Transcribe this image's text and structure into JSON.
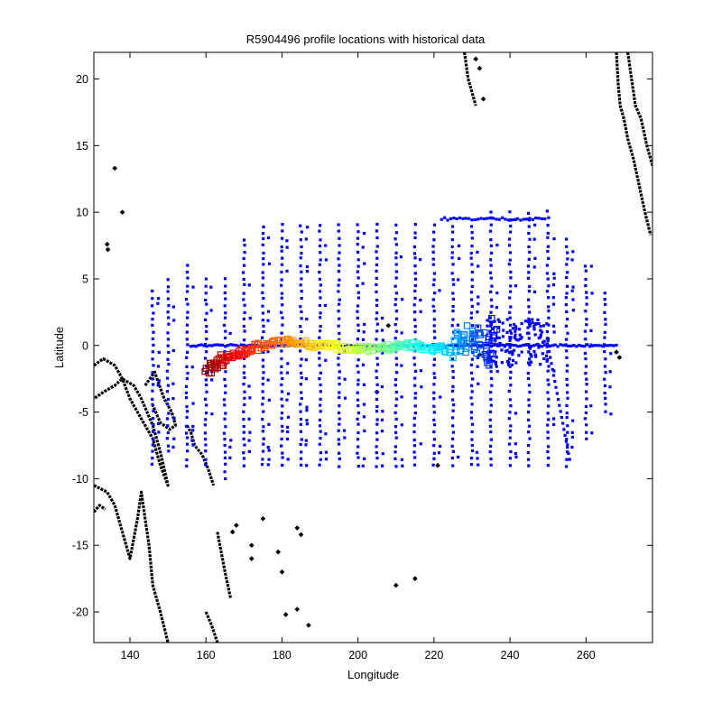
{
  "chart_data": {
    "type": "scatter",
    "title": "R5904496 profile locations with historical data",
    "xlabel": "Longitude",
    "ylabel": "Latitude",
    "xlim": [
      130.5,
      277.5
    ],
    "ylim": [
      -22.3,
      22.0
    ],
    "x_ticks": [
      140,
      160,
      180,
      200,
      220,
      240,
      260
    ],
    "y_ticks": [
      -20,
      -15,
      -10,
      -5,
      0,
      5,
      10,
      15,
      20
    ],
    "grid": false,
    "legend": "none",
    "colors": {
      "historical": "#0000ff",
      "coastline": "#000000",
      "float_track_scale": [
        "#7f0000",
        "#ff0000",
        "#ff7f00",
        "#ffff00",
        "#7fff7f",
        "#00ffff",
        "#007fff",
        "#0000ff"
      ]
    },
    "historical_meridians": [
      {
        "lon": 146,
        "lat": [
          -9,
          4
        ]
      },
      {
        "lon": 150,
        "lat": [
          -8,
          5
        ]
      },
      {
        "lon": 155,
        "lat": [
          -9,
          6
        ]
      },
      {
        "lon": 160,
        "lat": [
          -9,
          5
        ]
      },
      {
        "lon": 165,
        "lat": [
          -10,
          5
        ]
      },
      {
        "lon": 170,
        "lat": [
          -9,
          8
        ]
      },
      {
        "lon": 175,
        "lat": [
          -9,
          9
        ]
      },
      {
        "lon": 180,
        "lat": [
          -9,
          9
        ]
      },
      {
        "lon": 185,
        "lat": [
          -9,
          9
        ]
      },
      {
        "lon": 190,
        "lat": [
          -9,
          9
        ]
      },
      {
        "lon": 195,
        "lat": [
          -9,
          9
        ]
      },
      {
        "lon": 200,
        "lat": [
          -9,
          9
        ]
      },
      {
        "lon": 205,
        "lat": [
          -9,
          9
        ]
      },
      {
        "lon": 210,
        "lat": [
          -9,
          9
        ]
      },
      {
        "lon": 215,
        "lat": [
          -9,
          9
        ]
      },
      {
        "lon": 220,
        "lat": [
          -9,
          9
        ]
      },
      {
        "lon": 225,
        "lat": [
          -9,
          9
        ]
      },
      {
        "lon": 230,
        "lat": [
          -9,
          9
        ]
      },
      {
        "lon": 235,
        "lat": [
          -9,
          10
        ]
      },
      {
        "lon": 240,
        "lat": [
          -9,
          10
        ]
      },
      {
        "lon": 245,
        "lat": [
          -9,
          10
        ]
      },
      {
        "lon": 250,
        "lat": [
          -9,
          10
        ]
      },
      {
        "lon": 255,
        "lat": [
          -9,
          8
        ]
      },
      {
        "lon": 260,
        "lat": [
          -7,
          6
        ]
      },
      {
        "lon": 265,
        "lat": [
          -5,
          4
        ]
      }
    ],
    "historical_equator": {
      "lat": 0,
      "lon": [
        156,
        268
      ]
    },
    "historical_top_line": {
      "lat": 9.5,
      "lon": [
        222,
        250
      ]
    },
    "historical_diagonal": {
      "from": [
        250,
        0
      ],
      "to": [
        256,
        -9
      ]
    },
    "historical_blob": {
      "lon": [
        234,
        250
      ],
      "lat": [
        -1.5,
        2
      ]
    },
    "float_track": {
      "lon": [
        160,
        163,
        166,
        170,
        175,
        180,
        185,
        190,
        195,
        200,
        205,
        210,
        215,
        220,
        225,
        228,
        231,
        234,
        236
      ],
      "lat": [
        -1.7,
        -1.5,
        -0.8,
        -0.5,
        0.0,
        0.3,
        0.2,
        0.0,
        -0.1,
        -0.2,
        -0.2,
        -0.1,
        0.0,
        -0.2,
        -0.4,
        0.5,
        0.8,
        -0.6,
        1.2
      ]
    },
    "coastlines": [
      [
        [
          130.5,
          -1.5
        ],
        [
          133,
          -1
        ],
        [
          136,
          -1.5
        ],
        [
          138,
          -2.5
        ],
        [
          140,
          -4
        ],
        [
          143,
          -5.5
        ],
        [
          146,
          -7
        ],
        [
          148,
          -9
        ],
        [
          150,
          -10.5
        ],
        [
          148,
          -8
        ],
        [
          146,
          -6
        ],
        [
          143,
          -4
        ],
        [
          141,
          -3
        ],
        [
          138,
          -2.5
        ],
        [
          136,
          -3
        ],
        [
          133,
          -3.5
        ],
        [
          130.5,
          -4
        ]
      ],
      [
        [
          130.5,
          -10.5
        ],
        [
          134,
          -11
        ],
        [
          136,
          -12
        ],
        [
          138,
          -14
        ],
        [
          140,
          -16
        ],
        [
          142,
          -13
        ],
        [
          143,
          -11
        ],
        [
          144,
          -13
        ],
        [
          145,
          -15
        ],
        [
          146,
          -18
        ],
        [
          148,
          -20
        ],
        [
          150,
          -22.3
        ]
      ],
      [
        [
          130.5,
          -12.5
        ],
        [
          132,
          -12
        ],
        [
          133.5,
          -12.3
        ]
      ],
      [
        [
          144,
          -3
        ],
        [
          146.5,
          -2
        ],
        [
          149,
          -4
        ],
        [
          151,
          -5
        ],
        [
          152,
          -6
        ],
        [
          150.5,
          -6.3
        ],
        [
          148,
          -5.8
        ],
        [
          146,
          -4.5
        ]
      ],
      [
        [
          155,
          -6
        ],
        [
          156,
          -6.5
        ],
        [
          157,
          -7.5
        ],
        [
          159,
          -8.2
        ],
        [
          160.5,
          -9.2
        ],
        [
          162,
          -10.5
        ]
      ],
      [
        [
          160,
          -20
        ],
        [
          161.5,
          -21
        ],
        [
          163,
          -22.3
        ]
      ],
      [
        [
          163,
          -14
        ],
        [
          164,
          -15.5
        ],
        [
          165,
          -17
        ],
        [
          166.5,
          -19
        ]
      ],
      [
        [
          271,
          22
        ],
        [
          272,
          20
        ],
        [
          273,
          18
        ],
        [
          274.5,
          17
        ],
        [
          276,
          15
        ],
        [
          277.5,
          13.5
        ]
      ],
      [
        [
          268,
          22
        ],
        [
          268.5,
          19.5
        ],
        [
          269,
          18
        ],
        [
          270,
          17
        ],
        [
          271,
          15.5
        ],
        [
          272.5,
          14
        ],
        [
          274,
          12
        ],
        [
          275.5,
          10
        ],
        [
          277,
          8.3
        ]
      ],
      [
        [
          228,
          22
        ],
        [
          228.5,
          21
        ],
        [
          229,
          20
        ],
        [
          230,
          19
        ],
        [
          231,
          18
        ]
      ]
    ],
    "islands": [
      [
        136,
        13.3
      ],
      [
        138,
        10
      ],
      [
        134,
        7.6
      ],
      [
        134.2,
        7.2
      ],
      [
        208,
        1.5
      ],
      [
        232,
        -0.7
      ],
      [
        205,
        -3.5
      ],
      [
        221,
        -9
      ],
      [
        167,
        -14
      ],
      [
        168,
        -13.5
      ],
      [
        172,
        -15
      ],
      [
        172,
        -16
      ],
      [
        175,
        -13
      ],
      [
        179,
        -15.5
      ],
      [
        180,
        -17
      ],
      [
        184,
        -13.7
      ],
      [
        185,
        -14.2
      ],
      [
        181,
        -20.2
      ],
      [
        184,
        -19.8
      ],
      [
        187,
        -21
      ],
      [
        210,
        -18
      ],
      [
        215,
        -17.5
      ],
      [
        268,
        -0.5
      ],
      [
        268.8,
        -0.9
      ],
      [
        231,
        21.5
      ],
      [
        232,
        20.8
      ],
      [
        233,
        18.5
      ]
    ]
  }
}
